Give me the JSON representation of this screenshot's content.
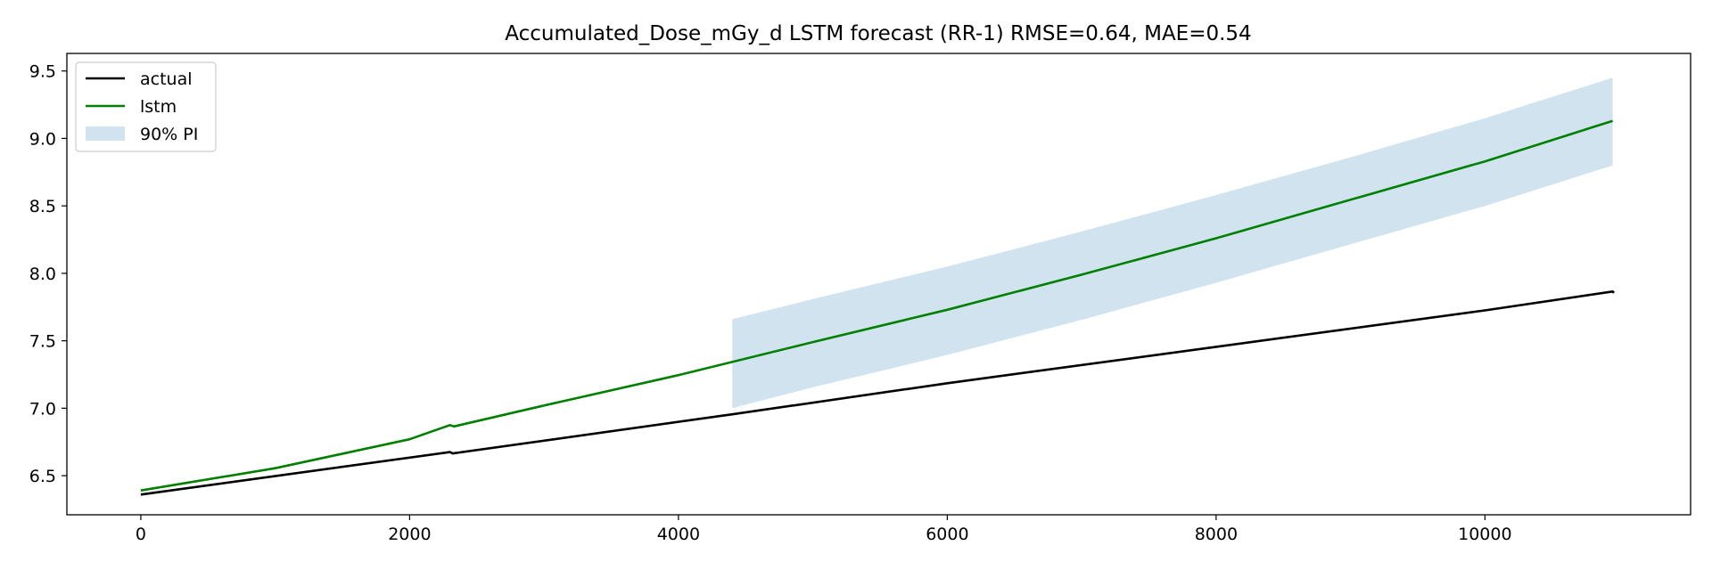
{
  "chart_data": {
    "type": "line",
    "title": "Accumulated_Dose_mGy_d LSTM forecast (RR-1)  RMSE=0.64, MAE=0.54",
    "xlabel": "",
    "ylabel": "",
    "xlim": [
      -550,
      11530
    ],
    "ylim": [
      6.21,
      9.63
    ],
    "x_ticks": [
      0,
      2000,
      4000,
      6000,
      8000,
      10000
    ],
    "y_ticks": [
      6.5,
      7.0,
      7.5,
      8.0,
      8.5,
      9.0,
      9.5
    ],
    "x_tick_labels": [
      "0",
      "2000",
      "4000",
      "6000",
      "8000",
      "10000"
    ],
    "y_tick_labels": [
      "6.5",
      "7.0",
      "7.5",
      "8.0",
      "8.5",
      "9.0",
      "9.5"
    ],
    "grid": false,
    "legend_position": "upper-left",
    "legend": [
      "actual",
      "lstm",
      "90% PI"
    ],
    "series": [
      {
        "name": "actual",
        "color": "#000000",
        "x": [
          0,
          2300,
          2320,
          4400,
          6000,
          8000,
          10000,
          10950,
          10960
        ],
        "y": [
          6.36,
          6.675,
          6.665,
          6.955,
          7.185,
          7.455,
          7.725,
          7.865,
          7.855
        ]
      },
      {
        "name": "lstm",
        "color": "#008000",
        "x": [
          0,
          1000,
          2000,
          2300,
          2330,
          3000,
          4000,
          5000,
          6000,
          7000,
          8000,
          9000,
          10000,
          10950
        ],
        "y": [
          6.39,
          6.555,
          6.77,
          6.875,
          6.865,
          7.02,
          7.245,
          7.49,
          7.73,
          7.99,
          8.26,
          8.545,
          8.83,
          9.13
        ]
      }
    ],
    "band": {
      "name": "90% PI",
      "color": "#d1e3ef",
      "x": [
        4400,
        5000,
        6000,
        7000,
        8000,
        9000,
        10000,
        10950
      ],
      "upper": [
        7.66,
        7.81,
        8.05,
        8.31,
        8.58,
        8.86,
        9.15,
        9.45
      ],
      "lower": [
        7.0,
        7.155,
        7.395,
        7.655,
        7.93,
        8.215,
        8.5,
        8.8
      ]
    }
  }
}
